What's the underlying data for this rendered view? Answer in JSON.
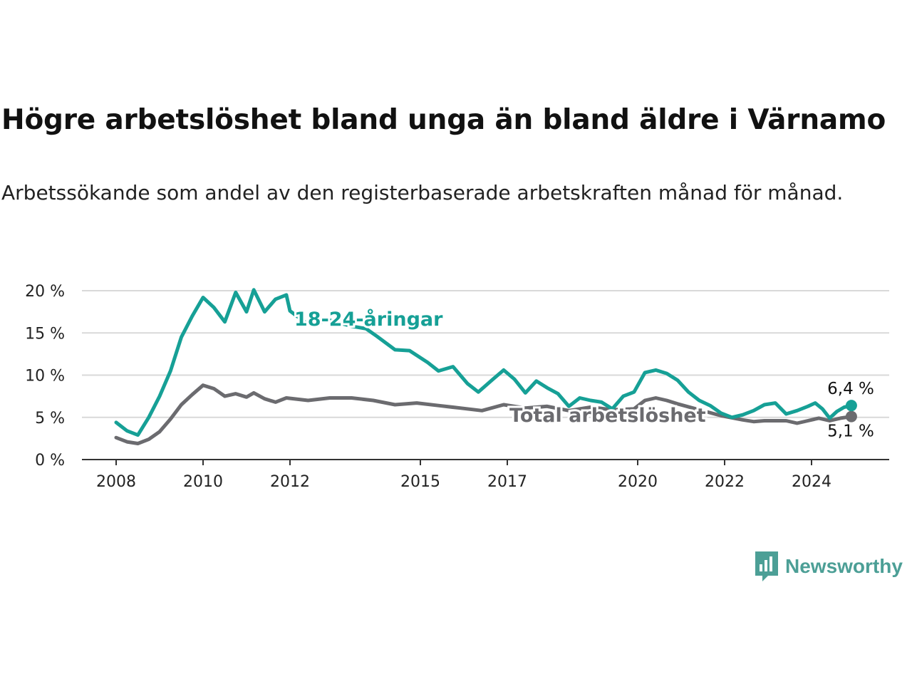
{
  "title": "Högre arbetslöshet bland unga än bland äldre i Värnamo",
  "subtitle": "Arbetssökande som andel av den registerbaserade arbetskraften månad för månad.",
  "brand": {
    "name": "Newsworthy",
    "icon": "newsworthy-logo-icon",
    "color": "#4c9f96"
  },
  "chart_data": {
    "type": "line",
    "title": "Högre arbetslöshet bland unga än bland äldre i Värnamo",
    "subtitle": "Arbetssökande som andel av den registerbaserade arbetskraften månad för månad.",
    "xlabel": "",
    "ylabel": "",
    "x_ticks": [
      "2008",
      "2010",
      "2012",
      "2015",
      "2017",
      "2020",
      "2022",
      "2024"
    ],
    "y_ticks": [
      "0 %",
      "5 %",
      "10 %",
      "15 %",
      "20 %"
    ],
    "ylim": [
      0,
      20
    ],
    "xlim": [
      "2008-01",
      "2024-12"
    ],
    "grid": "horizontal",
    "legend": "inline labels",
    "series": [
      {
        "name": "18-24-åringar",
        "color": "#16a096",
        "end_label": "6,4 %",
        "points": [
          [
            "2008-01",
            4.4
          ],
          [
            "2008-04",
            3.4
          ],
          [
            "2008-07",
            2.9
          ],
          [
            "2008-10",
            5.0
          ],
          [
            "2009-01",
            7.5
          ],
          [
            "2009-04",
            10.5
          ],
          [
            "2009-07",
            14.5
          ],
          [
            "2009-10",
            17.0
          ],
          [
            "2010-01",
            19.2
          ],
          [
            "2010-04",
            18.0
          ],
          [
            "2010-07",
            16.3
          ],
          [
            "2010-10",
            19.8
          ],
          [
            "2011-01",
            17.5
          ],
          [
            "2011-03",
            20.1
          ],
          [
            "2011-06",
            17.5
          ],
          [
            "2011-09",
            19.0
          ],
          [
            "2011-12",
            19.5
          ],
          [
            "2012-01",
            17.6
          ],
          [
            "2012-06",
            16.0
          ],
          [
            "2012-12",
            16.5
          ],
          [
            "2013-06",
            15.8
          ],
          [
            "2013-10",
            15.5
          ],
          [
            "2014-01",
            14.6
          ],
          [
            "2014-06",
            13.0
          ],
          [
            "2014-10",
            12.9
          ],
          [
            "2015-03",
            11.5
          ],
          [
            "2015-06",
            10.5
          ],
          [
            "2015-10",
            11.0
          ],
          [
            "2016-02",
            9.0
          ],
          [
            "2016-05",
            8.0
          ],
          [
            "2016-09",
            9.5
          ],
          [
            "2016-12",
            10.6
          ],
          [
            "2017-03",
            9.5
          ],
          [
            "2017-06",
            7.9
          ],
          [
            "2017-09",
            9.3
          ],
          [
            "2017-12",
            8.5
          ],
          [
            "2018-03",
            7.8
          ],
          [
            "2018-06",
            6.3
          ],
          [
            "2018-09",
            7.3
          ],
          [
            "2018-12",
            7.0
          ],
          [
            "2019-03",
            6.8
          ],
          [
            "2019-06",
            6.0
          ],
          [
            "2019-09",
            7.5
          ],
          [
            "2019-12",
            8.0
          ],
          [
            "2020-03",
            10.3
          ],
          [
            "2020-06",
            10.6
          ],
          [
            "2020-09",
            10.2
          ],
          [
            "2020-12",
            9.4
          ],
          [
            "2021-03",
            8.0
          ],
          [
            "2021-06",
            7.0
          ],
          [
            "2021-09",
            6.4
          ],
          [
            "2021-12",
            5.5
          ],
          [
            "2022-03",
            5.0
          ],
          [
            "2022-06",
            5.3
          ],
          [
            "2022-09",
            5.8
          ],
          [
            "2022-12",
            6.5
          ],
          [
            "2023-03",
            6.7
          ],
          [
            "2023-06",
            5.4
          ],
          [
            "2023-09",
            5.8
          ],
          [
            "2023-12",
            6.3
          ],
          [
            "2024-02",
            6.7
          ],
          [
            "2024-04",
            6.0
          ],
          [
            "2024-06",
            4.9
          ],
          [
            "2024-08",
            5.7
          ],
          [
            "2024-10",
            6.2
          ],
          [
            "2024-12",
            6.4
          ]
        ]
      },
      {
        "name": "Total arbetslöshet",
        "color": "#6b6b6f",
        "end_label": "5,1 %",
        "points": [
          [
            "2008-01",
            2.6
          ],
          [
            "2008-04",
            2.1
          ],
          [
            "2008-07",
            1.9
          ],
          [
            "2008-10",
            2.4
          ],
          [
            "2009-01",
            3.3
          ],
          [
            "2009-04",
            4.8
          ],
          [
            "2009-07",
            6.5
          ],
          [
            "2009-10",
            7.7
          ],
          [
            "2010-01",
            8.8
          ],
          [
            "2010-04",
            8.4
          ],
          [
            "2010-07",
            7.5
          ],
          [
            "2010-10",
            7.8
          ],
          [
            "2011-01",
            7.4
          ],
          [
            "2011-03",
            7.9
          ],
          [
            "2011-06",
            7.2
          ],
          [
            "2011-09",
            6.8
          ],
          [
            "2011-12",
            7.3
          ],
          [
            "2012-06",
            7.0
          ],
          [
            "2012-12",
            7.3
          ],
          [
            "2013-06",
            7.3
          ],
          [
            "2013-12",
            7.0
          ],
          [
            "2014-06",
            6.5
          ],
          [
            "2014-12",
            6.7
          ],
          [
            "2015-06",
            6.4
          ],
          [
            "2015-12",
            6.1
          ],
          [
            "2016-06",
            5.8
          ],
          [
            "2016-12",
            6.5
          ],
          [
            "2017-06",
            6.1
          ],
          [
            "2017-12",
            6.3
          ],
          [
            "2018-06",
            5.8
          ],
          [
            "2018-12",
            6.2
          ],
          [
            "2019-06",
            5.9
          ],
          [
            "2019-12",
            6.0
          ],
          [
            "2020-03",
            7.0
          ],
          [
            "2020-06",
            7.3
          ],
          [
            "2020-09",
            7.0
          ],
          [
            "2020-12",
            6.6
          ],
          [
            "2021-06",
            5.9
          ],
          [
            "2021-12",
            5.2
          ],
          [
            "2022-06",
            4.7
          ],
          [
            "2022-09",
            4.5
          ],
          [
            "2022-12",
            4.6
          ],
          [
            "2023-06",
            4.6
          ],
          [
            "2023-09",
            4.3
          ],
          [
            "2023-12",
            4.6
          ],
          [
            "2024-03",
            4.9
          ],
          [
            "2024-06",
            4.6
          ],
          [
            "2024-09",
            4.9
          ],
          [
            "2024-12",
            5.1
          ]
        ]
      }
    ],
    "annotations": [
      {
        "series": "18-24-åringar",
        "text": "18-24-åringar",
        "at": "2013-01"
      },
      {
        "series": "Total arbetslöshet",
        "text": "Total arbetslöshet",
        "at": "2019-04"
      }
    ]
  }
}
